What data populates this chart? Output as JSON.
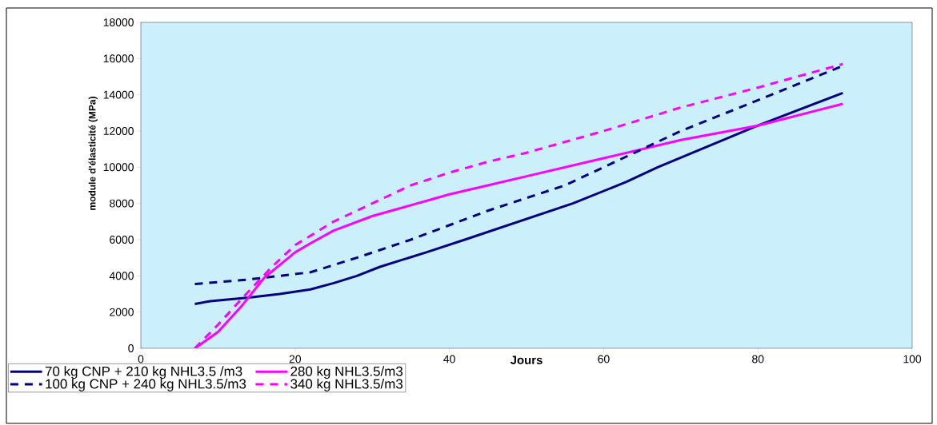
{
  "chart_data": {
    "type": "line",
    "xlabel": "Jours",
    "ylabel": "module d'élasticité (MPa)",
    "xlim": [
      0,
      100
    ],
    "xticks": [
      0,
      20,
      40,
      60,
      80,
      100
    ],
    "ylim": [
      0,
      18000
    ],
    "yticks": [
      0,
      2000,
      4000,
      6000,
      8000,
      10000,
      12000,
      14000,
      16000,
      18000
    ],
    "grid": false,
    "legend": "bottom",
    "marker": "none",
    "series": [
      {
        "name": "70 kg CNP + 210 kg NHL3.5 /m3",
        "color": "#000080",
        "line_style": "solid",
        "x": [
          7,
          9,
          14,
          18,
          22,
          25,
          28,
          31,
          34,
          37,
          42,
          49,
          56,
          63,
          67,
          80,
          91
        ],
        "values": [
          2450,
          2600,
          2800,
          3000,
          3250,
          3600,
          4000,
          4500,
          4900,
          5300,
          6000,
          7000,
          8000,
          9200,
          10000,
          12300,
          14100
        ]
      },
      {
        "name": "280 kg NHL3.5/m3",
        "color": "#ff00ff",
        "line_style": "solid",
        "x": [
          7,
          10,
          13,
          16,
          20,
          22,
          25,
          30,
          35,
          40,
          45,
          50,
          55,
          60,
          70,
          80,
          91
        ],
        "values": [
          0,
          900,
          2300,
          3900,
          5300,
          5800,
          6500,
          7300,
          7900,
          8500,
          9000,
          9500,
          10000,
          10500,
          11500,
          12300,
          13500
        ]
      },
      {
        "name": "100 kg CNP + 240 kg NHL3.5/m3",
        "color": "#000080",
        "line_style": "dashed",
        "x": [
          7,
          14,
          20,
          22,
          28,
          35,
          45,
          55,
          60,
          70,
          80,
          91
        ],
        "values": [
          3550,
          3800,
          4100,
          4200,
          5000,
          6000,
          7600,
          9000,
          10000,
          12000,
          13700,
          15600
        ]
      },
      {
        "name": "340 kg NHL3.5/m3",
        "color": "#ff00ff",
        "line_style": "dashed",
        "x": [
          7,
          10,
          13,
          17,
          20,
          25,
          30,
          35,
          40,
          45,
          50,
          60,
          70,
          80,
          91
        ],
        "values": [
          0,
          1300,
          2700,
          4500,
          5700,
          7000,
          8000,
          9000,
          9700,
          10300,
          10800,
          12000,
          13300,
          14400,
          15700
        ]
      }
    ]
  }
}
